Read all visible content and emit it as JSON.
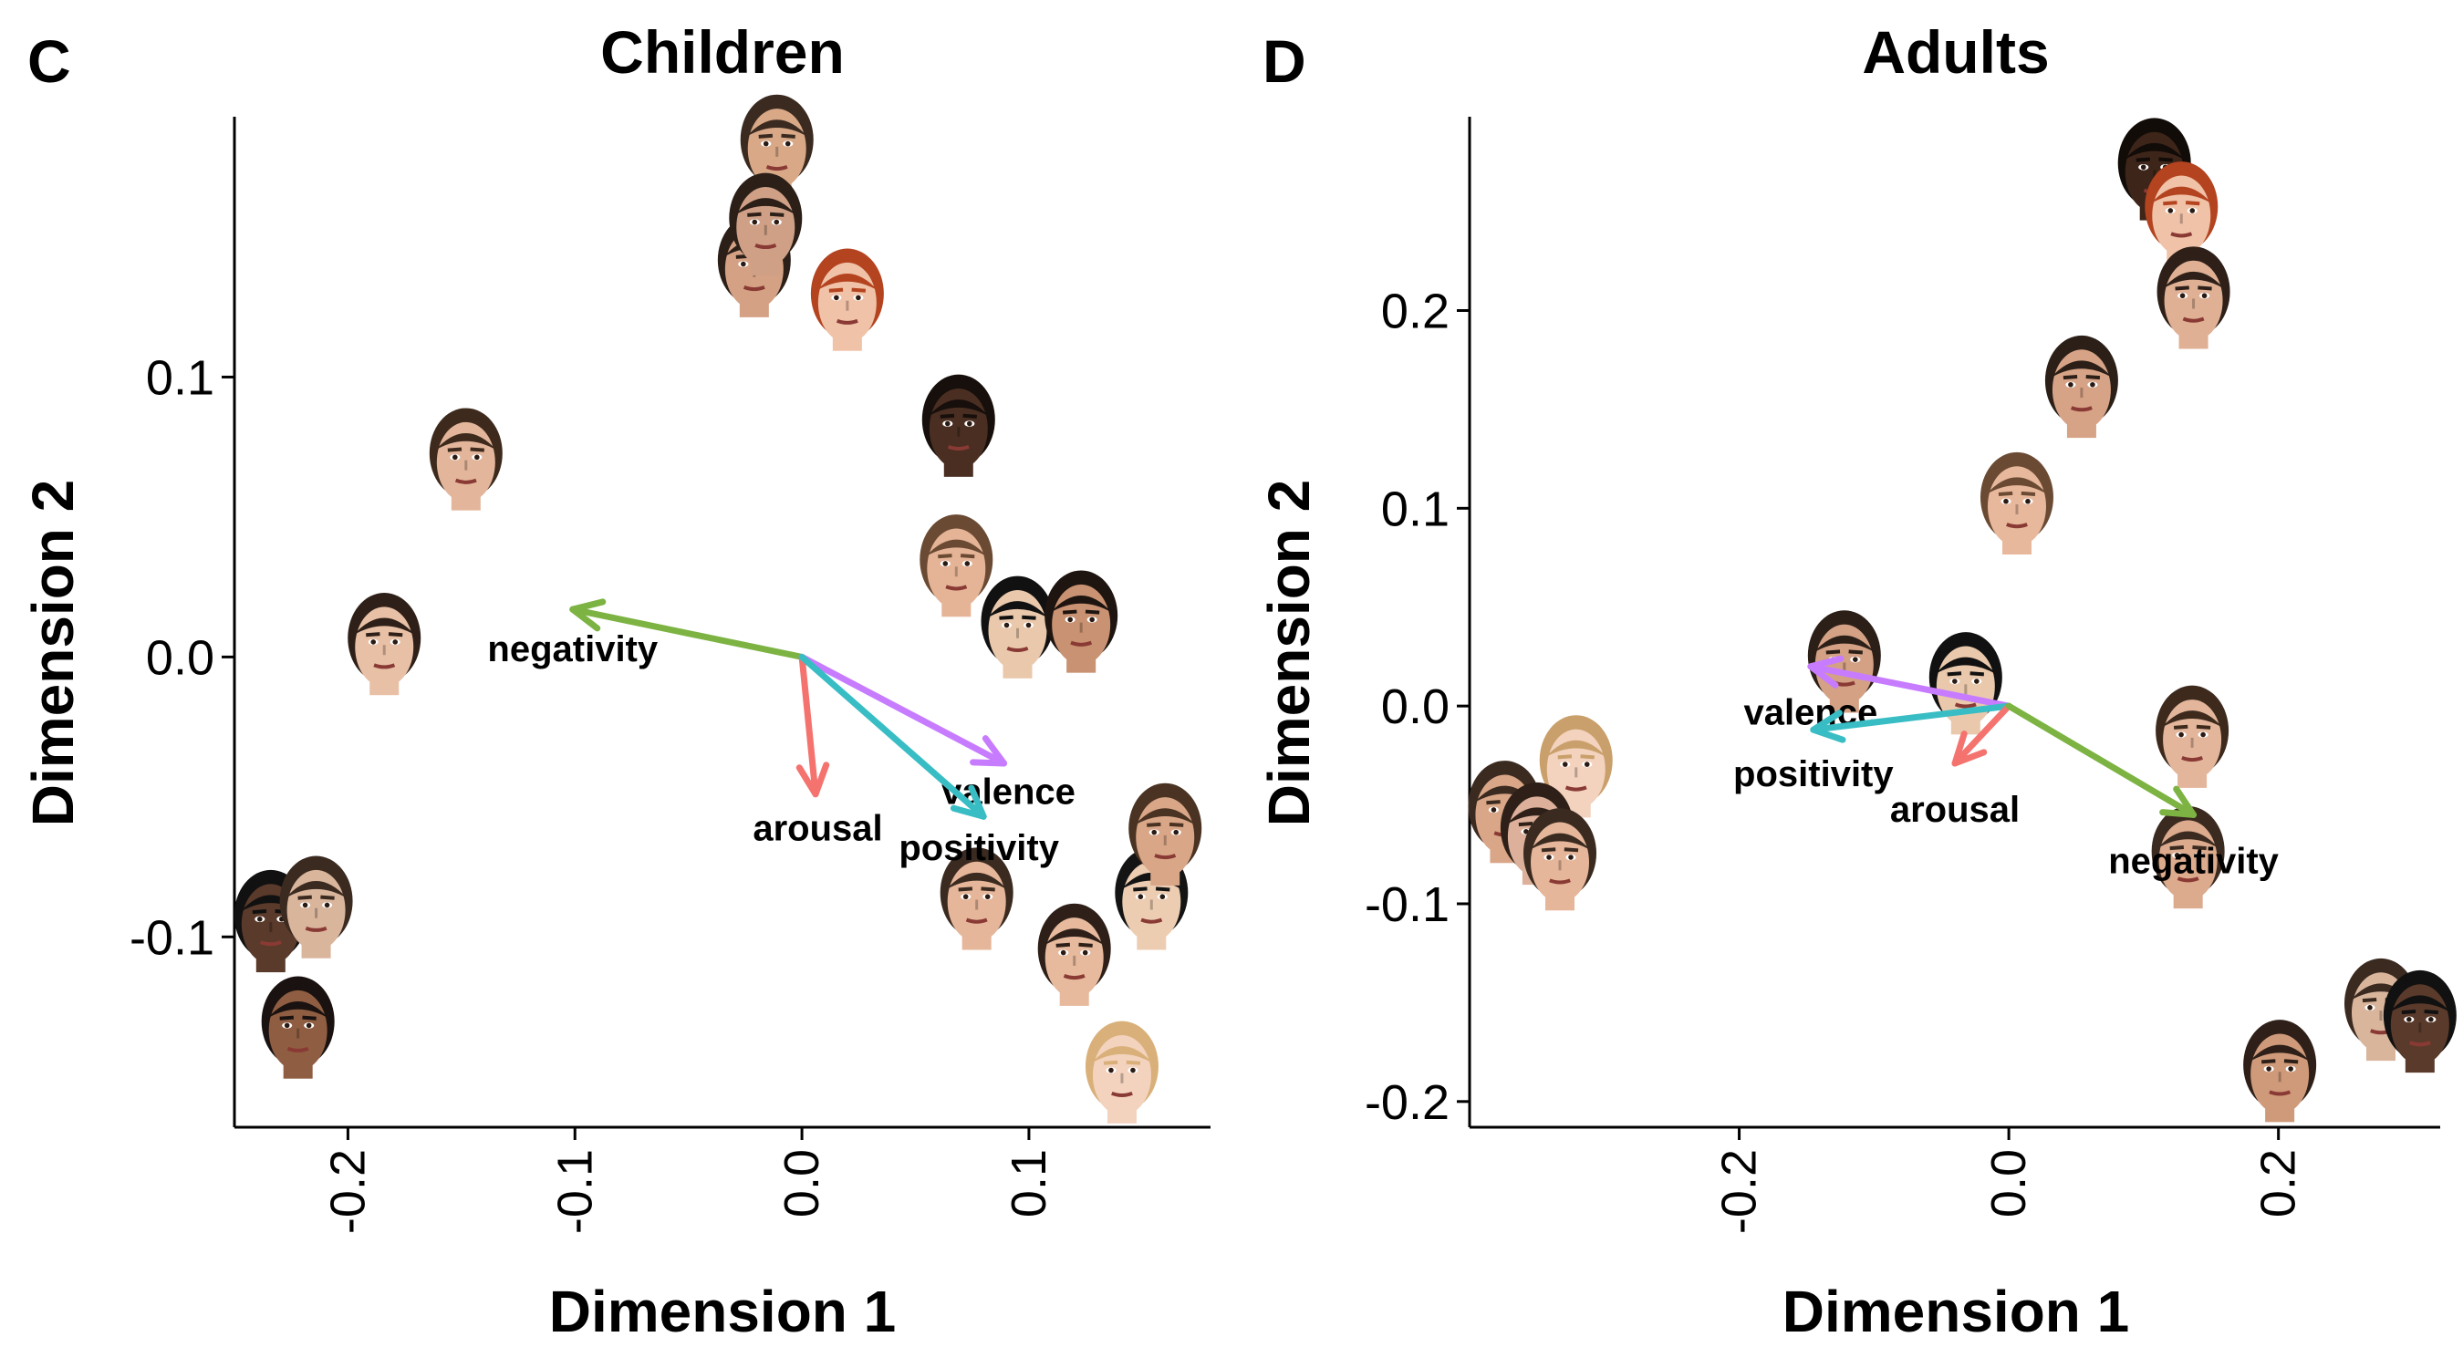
{
  "chart_data": [
    {
      "type": "scatter",
      "panel_letter": "C",
      "title": "Children",
      "xlabel": "Dimension 1",
      "ylabel": "Dimension 2",
      "xlim": [
        -0.25,
        0.18
      ],
      "ylim": [
        -0.168,
        0.193
      ],
      "x_ticks": [
        -0.2,
        -0.1,
        0.0,
        0.1
      ],
      "x_tick_labels": [
        "-0.2",
        "-0.1",
        "0.0",
        "0.1"
      ],
      "y_ticks": [
        -0.1,
        0.0,
        0.1
      ],
      "y_tick_labels": [
        "-0.1",
        "0.0",
        "0.1"
      ],
      "grid": false,
      "points": [
        {
          "x": -0.011,
          "y": 0.183,
          "skin": "#d9a887",
          "hair": "#3a2a20"
        },
        {
          "x": -0.021,
          "y": 0.14,
          "skin": "#d4a184",
          "hair": "#2b1f18"
        },
        {
          "x": -0.016,
          "y": 0.155,
          "skin": "#cfa086",
          "hair": "#2b1f18"
        },
        {
          "x": 0.02,
          "y": 0.128,
          "skin": "#f0c2a8",
          "hair": "#b4431f"
        },
        {
          "x": 0.069,
          "y": 0.083,
          "skin": "#4a2e22",
          "hair": "#160f0b"
        },
        {
          "x": -0.148,
          "y": 0.071,
          "skin": "#e3b69b",
          "hair": "#3d2a1d"
        },
        {
          "x": -0.184,
          "y": 0.005,
          "skin": "#e8c0a6",
          "hair": "#2e2018"
        },
        {
          "x": 0.068,
          "y": 0.033,
          "skin": "#e5b497",
          "hair": "#6a4a33"
        },
        {
          "x": 0.095,
          "y": 0.011,
          "skin": "#eac8ab",
          "hair": "#111111"
        },
        {
          "x": 0.123,
          "y": 0.013,
          "skin": "#c99272",
          "hair": "#1e1510"
        },
        {
          "x": -0.234,
          "y": -0.094,
          "skin": "#5a3a2a",
          "hair": "#111111"
        },
        {
          "x": -0.214,
          "y": -0.089,
          "skin": "#d9b59c",
          "hair": "#3b2a20"
        },
        {
          "x": -0.222,
          "y": -0.132,
          "skin": "#8f5e42",
          "hair": "#1a1210"
        },
        {
          "x": 0.077,
          "y": -0.086,
          "skin": "#e6b69a",
          "hair": "#3a2a20"
        },
        {
          "x": 0.12,
          "y": -0.106,
          "skin": "#e7b99d",
          "hair": "#2e2018"
        },
        {
          "x": 0.154,
          "y": -0.086,
          "skin": "#edcdb2",
          "hair": "#141414"
        },
        {
          "x": 0.16,
          "y": -0.063,
          "skin": "#d9a687",
          "hair": "#4a3322"
        },
        {
          "x": 0.141,
          "y": -0.148,
          "skin": "#f3d2be",
          "hair": "#d9b079"
        }
      ],
      "vectors": [
        {
          "name": "negativity",
          "x": -0.101,
          "y": 0.017,
          "color": "#7cb342",
          "label_x": -0.101,
          "label_y": 0.003
        },
        {
          "name": "arousal",
          "x": 0.006,
          "y": -0.049,
          "color": "#f4736e",
          "label_x": 0.007,
          "label_y": -0.061
        },
        {
          "name": "valence",
          "x": 0.089,
          "y": -0.038,
          "color": "#c77cff",
          "label_x": 0.091,
          "label_y": -0.048
        },
        {
          "name": "positivity",
          "x": 0.08,
          "y": -0.057,
          "color": "#39bdc4",
          "label_x": 0.078,
          "label_y": -0.068
        }
      ]
    },
    {
      "type": "scatter",
      "panel_letter": "D",
      "title": "Adults",
      "xlabel": "Dimension 1",
      "ylabel": "Dimension 2",
      "xlim": [
        -0.4,
        0.32
      ],
      "ylim": [
        -0.213,
        0.298
      ],
      "x_ticks": [
        -0.2,
        0.0,
        0.2
      ],
      "x_tick_labels": [
        "-0.2",
        "0.0",
        "0.2"
      ],
      "y_ticks": [
        -0.2,
        -0.1,
        0.0,
        0.1,
        0.2
      ],
      "y_tick_labels": [
        "-0.2",
        "-0.1",
        "0.0",
        "0.1",
        "0.2"
      ],
      "grid": false,
      "points": [
        {
          "x": 0.108,
          "y": 0.272,
          "skin": "#3e2519",
          "hair": "#120c09"
        },
        {
          "x": 0.128,
          "y": 0.25,
          "skin": "#f0c2a8",
          "hair": "#b4431f"
        },
        {
          "x": 0.137,
          "y": 0.207,
          "skin": "#e0b095",
          "hair": "#2e2018"
        },
        {
          "x": 0.054,
          "y": 0.162,
          "skin": "#d7a386",
          "hair": "#2b1f18"
        },
        {
          "x": 0.006,
          "y": 0.103,
          "skin": "#e8b89c",
          "hair": "#6a4a33"
        },
        {
          "x": -0.122,
          "y": 0.023,
          "skin": "#d4a184",
          "hair": "#2b1f18"
        },
        {
          "x": -0.032,
          "y": 0.012,
          "skin": "#eac8ab",
          "hair": "#111111"
        },
        {
          "x": 0.136,
          "y": -0.015,
          "skin": "#e3b69b",
          "hair": "#3d2a1d"
        },
        {
          "x": 0.133,
          "y": -0.076,
          "skin": "#dcaa8c",
          "hair": "#3a2a20"
        },
        {
          "x": -0.321,
          "y": -0.03,
          "skin": "#f3d2be",
          "hair": "#c9a06b"
        },
        {
          "x": -0.374,
          "y": -0.053,
          "skin": "#d9a687",
          "hair": "#3b2a20"
        },
        {
          "x": -0.35,
          "y": -0.064,
          "skin": "#dcb09a",
          "hair": "#2e2018"
        },
        {
          "x": -0.333,
          "y": -0.077,
          "skin": "#e6b69a",
          "hair": "#3a2a20"
        },
        {
          "x": 0.276,
          "y": -0.153,
          "skin": "#d9b59c",
          "hair": "#3b2a20"
        },
        {
          "x": 0.305,
          "y": -0.159,
          "skin": "#5a3a2a",
          "hair": "#111111"
        },
        {
          "x": 0.201,
          "y": -0.184,
          "skin": "#cf9a7a",
          "hair": "#2e2018"
        }
      ],
      "vectors": [
        {
          "name": "valence",
          "x": -0.147,
          "y": 0.02,
          "color": "#c77cff",
          "label_x": -0.147,
          "label_y": -0.003
        },
        {
          "name": "positivity",
          "x": -0.145,
          "y": -0.012,
          "color": "#39bdc4",
          "label_x": -0.145,
          "label_y": -0.034
        },
        {
          "name": "arousal",
          "x": -0.04,
          "y": -0.029,
          "color": "#f4736e",
          "label_x": -0.04,
          "label_y": -0.052
        },
        {
          "name": "negativity",
          "x": 0.137,
          "y": -0.055,
          "color": "#7cb342",
          "label_x": 0.137,
          "label_y": -0.078
        }
      ]
    }
  ]
}
